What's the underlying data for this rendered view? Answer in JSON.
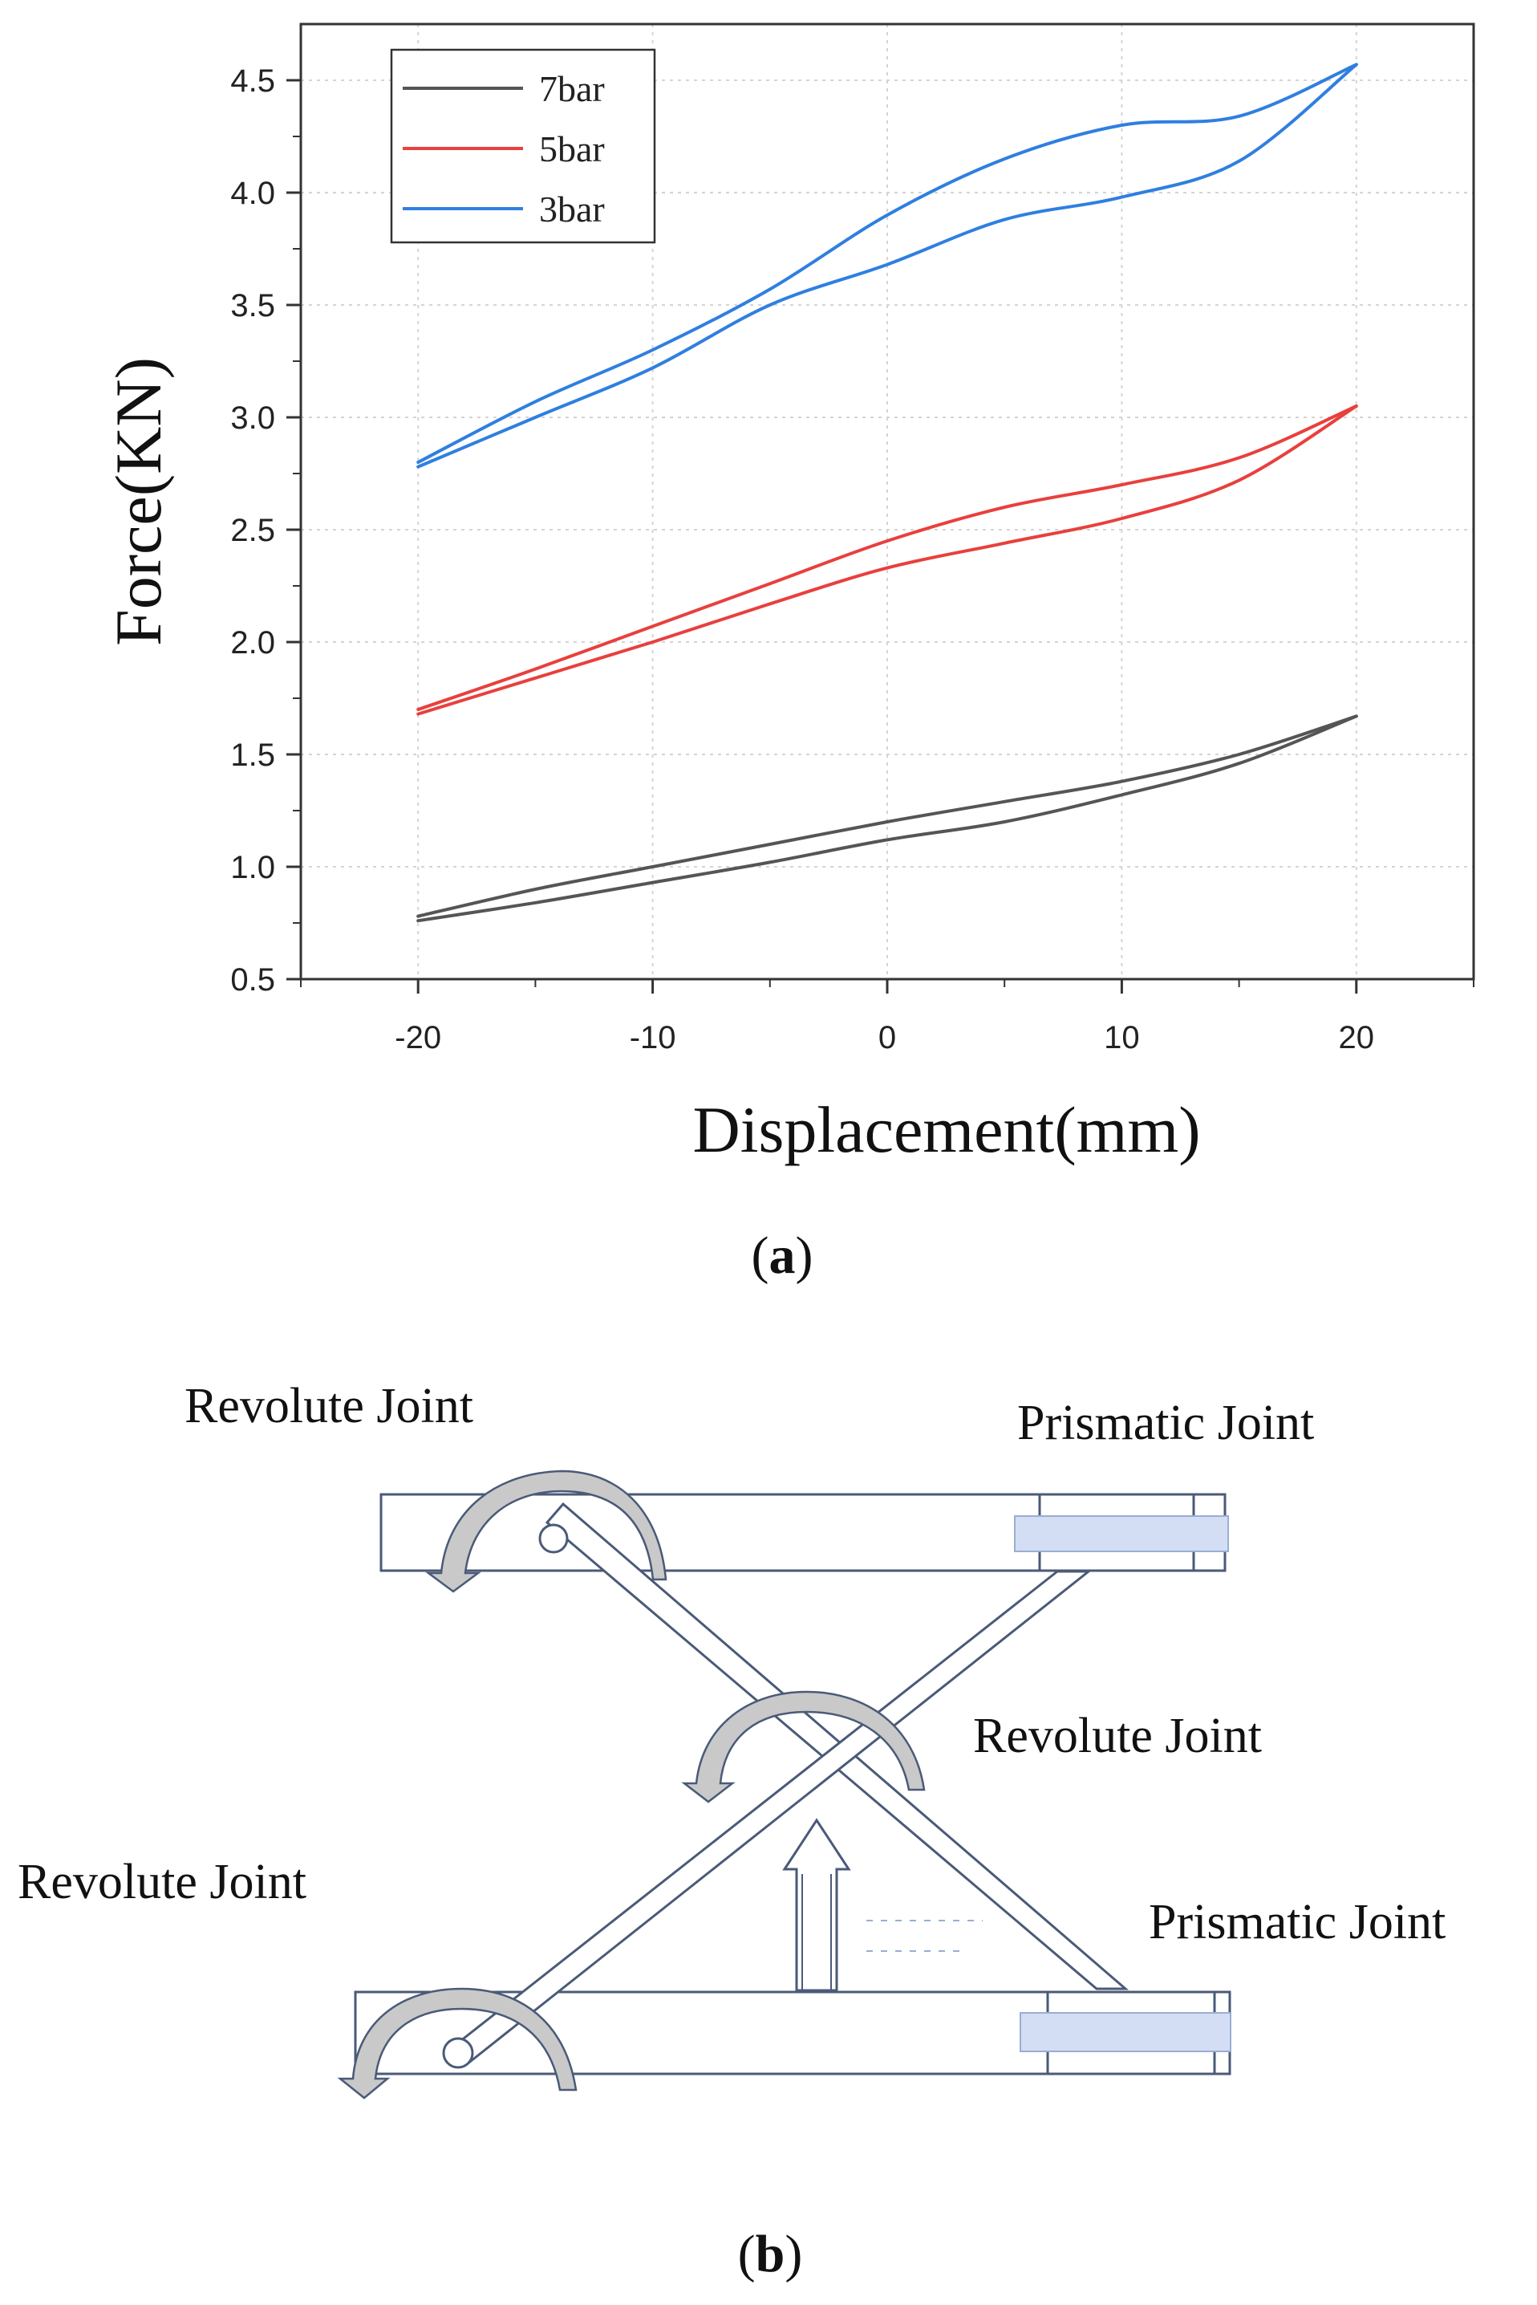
{
  "panel_a": {
    "caption_letter": "a",
    "chart_data": {
      "type": "line",
      "title": "",
      "xlabel": "Displacement(mm)",
      "ylabel": "Force(KN)",
      "xlim": [
        -25,
        25
      ],
      "ylim": [
        0.5,
        4.75
      ],
      "x_ticks": [
        -20,
        -10,
        0,
        10,
        20
      ],
      "x_tick_labels": [
        "-20",
        "-10",
        "0",
        "10",
        "20"
      ],
      "y_ticks": [
        0.5,
        1.0,
        1.5,
        2.0,
        2.5,
        3.0,
        3.5,
        4.0,
        4.5
      ],
      "y_tick_labels": [
        "0.5",
        "1.0",
        "1.5",
        "2.0",
        "2.5",
        "3.0",
        "3.5",
        "4.0",
        "4.5"
      ],
      "grid": true,
      "legend_position": "top-left",
      "series": [
        {
          "name": "7bar",
          "color": "#555555",
          "upper": {
            "x": [
              -20,
              -15,
              -10,
              -5,
              0,
              5,
              10,
              15,
              20
            ],
            "y": [
              0.78,
              0.9,
              1.0,
              1.1,
              1.2,
              1.29,
              1.38,
              1.5,
              1.67
            ]
          },
          "lower": {
            "x": [
              -20,
              -15,
              -10,
              -5,
              0,
              5,
              10,
              15,
              20
            ],
            "y": [
              0.76,
              0.84,
              0.93,
              1.02,
              1.12,
              1.2,
              1.32,
              1.46,
              1.67
            ]
          }
        },
        {
          "name": "5bar",
          "color": "#e8403d",
          "upper": {
            "x": [
              -20,
              -15,
              -10,
              -5,
              0,
              5,
              10,
              15,
              20
            ],
            "y": [
              1.7,
              1.88,
              2.07,
              2.26,
              2.45,
              2.6,
              2.7,
              2.82,
              3.05
            ]
          },
          "lower": {
            "x": [
              -20,
              -15,
              -10,
              -5,
              0,
              5,
              10,
              15,
              20
            ],
            "y": [
              1.68,
              1.84,
              2.0,
              2.17,
              2.33,
              2.44,
              2.55,
              2.72,
              3.05
            ]
          }
        },
        {
          "name": "3bar",
          "color": "#2f7fe0",
          "upper": {
            "x": [
              -20,
              -15,
              -10,
              -5,
              0,
              5,
              10,
              15,
              20
            ],
            "y": [
              2.8,
              3.07,
              3.3,
              3.57,
              3.9,
              4.15,
              4.3,
              4.34,
              4.57
            ]
          },
          "lower": {
            "x": [
              -20,
              -15,
              -10,
              -5,
              0,
              5,
              10,
              15,
              20
            ],
            "y": [
              2.78,
              3.0,
              3.22,
              3.5,
              3.68,
              3.88,
              3.98,
              4.14,
              4.57
            ]
          }
        }
      ]
    }
  },
  "panel_b": {
    "caption_letter": "b",
    "labels": {
      "revolute_top_left": "Revolute Joint",
      "prismatic_top_right": "Prismatic Joint",
      "revolute_center": "Revolute Joint",
      "revolute_bottom_left": "Revolute Joint",
      "prismatic_bottom_right": "Prismatic Joint"
    },
    "colors": {
      "outline": "#4a5a78",
      "slider_fill": "#d3def4",
      "arrow_fill": "#c9c9c9"
    }
  }
}
